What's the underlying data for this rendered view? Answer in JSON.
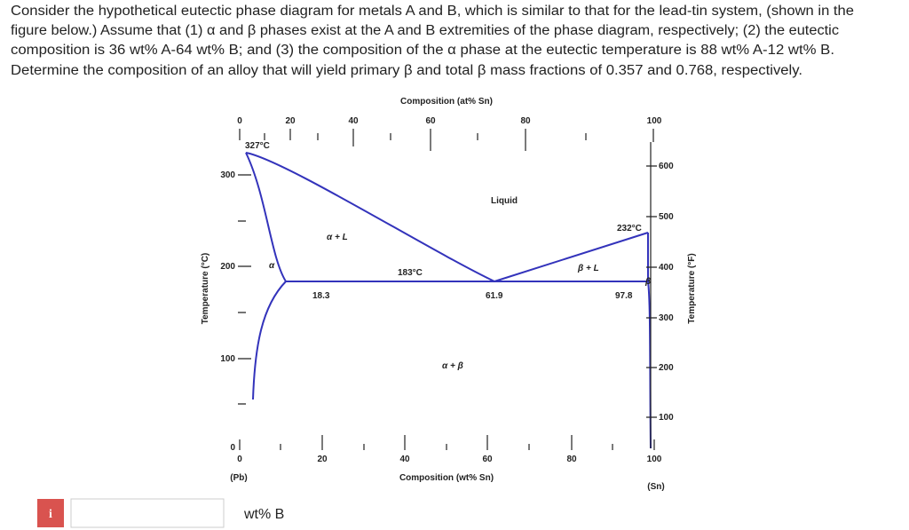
{
  "question": {
    "lines": [
      "Consider the hypothetical eutectic phase diagram for metals A and B, which is similar to that for the lead-tin system, (shown in the",
      "figure below.) Assume that (1) α and β phases exist at the A and B extremities of the phase diagram, respectively; (2) the eutectic",
      "composition is 36 wt% A-64 wt% B; and (3) the composition of the α phase at the eutectic temperature is 88 wt% A-12 wt% B.",
      "Determine the composition of an alloy that will yield primary β and total β mass fractions of 0.357 and 0.768, respectively."
    ]
  },
  "figure": {
    "top_axis_title": "Composition (at% Sn)",
    "top_ticks": [
      0,
      20,
      40,
      60,
      80,
      100
    ],
    "bottom_axis_title": "Composition (wt% Sn)",
    "bottom_ticks": [
      0,
      20,
      40,
      60,
      80,
      100
    ],
    "left_axis_title": "Temperature (°C)",
    "left_ticks": [
      0,
      100,
      200,
      300
    ],
    "right_axis_title": "Temperature (°F)",
    "right_ticks": [
      100,
      200,
      300,
      400,
      500,
      600
    ],
    "left_end": "(Pb)",
    "right_end": "(Sn)",
    "labels": [
      "327°C",
      "232°C",
      "183°C",
      "18.3",
      "61.9",
      "97.8",
      "Liquid",
      "α + L",
      "β + L",
      "α",
      "β",
      "α + β"
    ]
  },
  "answer": {
    "icon": "i",
    "unit": "wt% B"
  }
}
